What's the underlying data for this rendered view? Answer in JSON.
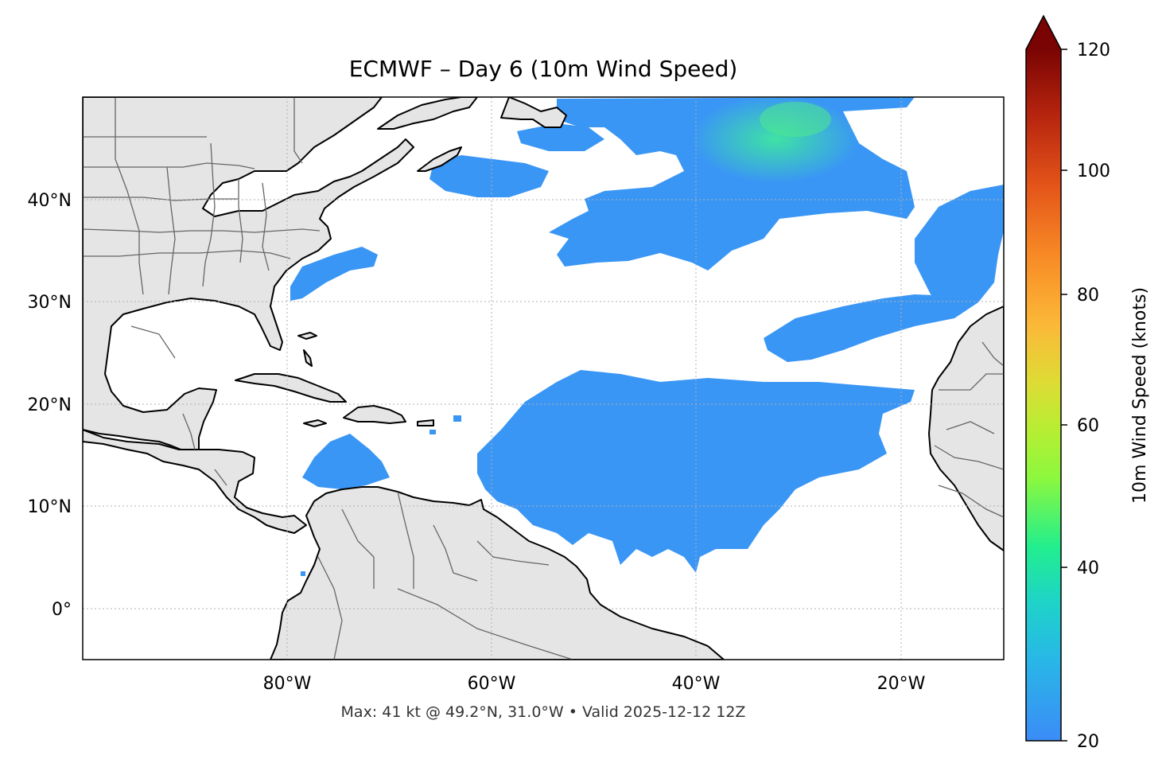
{
  "title": "ECMWF – Day 6 (10m Wind Speed)",
  "footer": "Max: 41 kt @ 49.2°N, 31.0°W • Valid 2025-12-12 12Z",
  "map": {
    "lon_ticks": [
      "80°W",
      "60°W",
      "40°W",
      "20°W"
    ],
    "lat_ticks": [
      "40°N",
      "30°N",
      "20°N",
      "10°N",
      "0°"
    ],
    "land_color": "#e5e5e5",
    "coast_color": "#000000",
    "border_color": "#666666",
    "wind_base_color": "#3a96f5",
    "wind_peak_color": "#3ee6a0"
  },
  "colorbar": {
    "label": "10m Wind Speed (knots)",
    "ticks": [
      "120",
      "100",
      "80",
      "60",
      "40",
      "20"
    ]
  }
}
